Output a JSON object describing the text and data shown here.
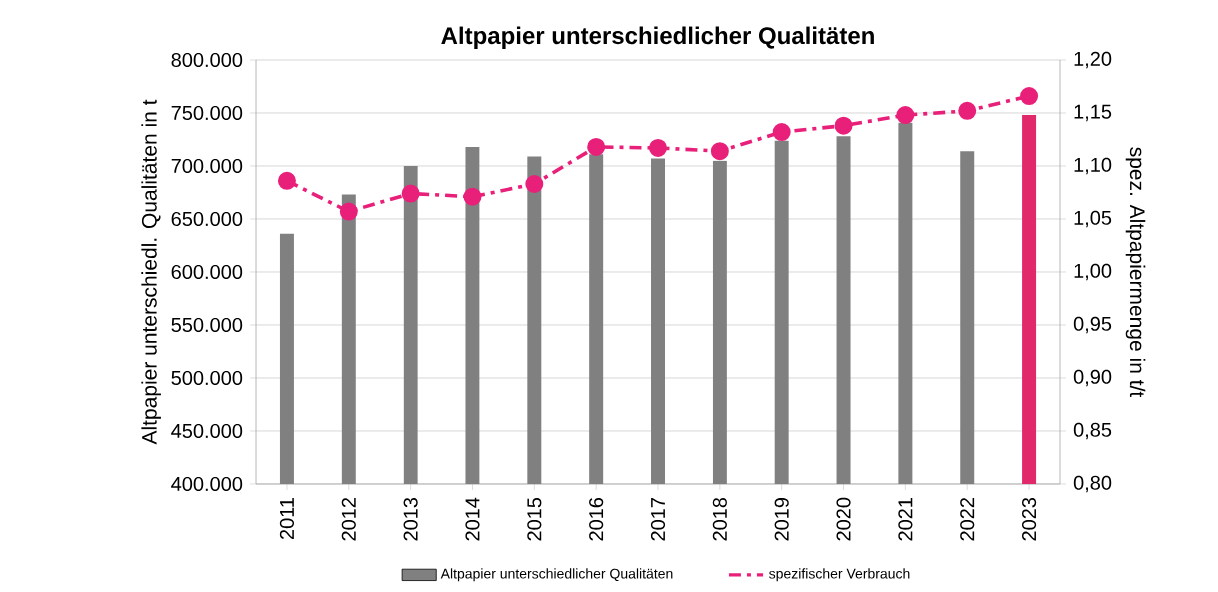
{
  "chart_data": {
    "type": "bar",
    "title": "Altpapier  unterschiedlicher  Qualitäten",
    "categories": [
      "2011",
      "2012",
      "2013",
      "2014",
      "2015",
      "2016",
      "2017",
      "2018",
      "2019",
      "2020",
      "2021",
      "2022",
      "2023"
    ],
    "series": [
      {
        "name": "Altpapier unterschiedlicher Qualitäten",
        "color": "#808080",
        "colors": [
          "#808080",
          "#808080",
          "#808080",
          "#808080",
          "#808080",
          "#808080",
          "#808080",
          "#808080",
          "#808080",
          "#808080",
          "#808080",
          "#808080",
          "#e0286a"
        ],
        "values": [
          636000,
          673000,
          700000,
          718000,
          709000,
          711000,
          707000,
          705000,
          724000,
          728000,
          741000,
          714000,
          748000
        ]
      },
      {
        "name": "spezifischer Verbrauch",
        "type": "line",
        "axis": "y2",
        "color": "#e8207a",
        "marker": "circle",
        "line_style": "dashed",
        "values": [
          1.086,
          1.057,
          1.074,
          1.071,
          1.083,
          1.118,
          1.117,
          1.114,
          1.132,
          1.138,
          1.148,
          1.152,
          1.166
        ]
      }
    ],
    "ylabel": "Altpapier unterschiedl. Qualitäten in t",
    "y2label": "spez. Altpapiermenge in t/t",
    "ylim": [
      400000,
      800000
    ],
    "yticks": [
      {
        "value": 400000,
        "label": "400.000"
      },
      {
        "value": 450000,
        "label": "450.000"
      },
      {
        "value": 500000,
        "label": "500.000"
      },
      {
        "value": 550000,
        "label": "550.000"
      },
      {
        "value": 600000,
        "label": "600.000"
      },
      {
        "value": 650000,
        "label": "650.000"
      },
      {
        "value": 700000,
        "label": "700.000"
      },
      {
        "value": 750000,
        "label": "750.000"
      },
      {
        "value": 800000,
        "label": "800.000"
      }
    ],
    "y2lim": [
      0.8,
      1.2
    ],
    "y2ticks": [
      {
        "value": 0.8,
        "label": "0,80"
      },
      {
        "value": 0.85,
        "label": "0,85"
      },
      {
        "value": 0.9,
        "label": "0,90"
      },
      {
        "value": 0.95,
        "label": "0,95"
      },
      {
        "value": 1.0,
        "label": "1,00"
      },
      {
        "value": 1.05,
        "label": "1,05"
      },
      {
        "value": 1.1,
        "label": "1,10"
      },
      {
        "value": 1.15,
        "label": "1,15"
      },
      {
        "value": 1.2,
        "label": "1,20"
      }
    ],
    "grid": "y",
    "legend": "bottom"
  }
}
